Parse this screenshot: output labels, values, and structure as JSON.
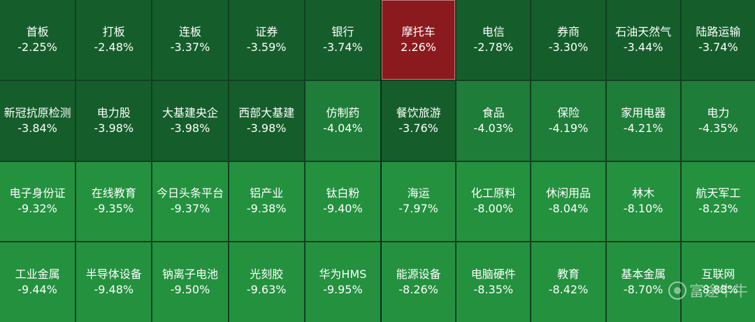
{
  "colors": {
    "up": "#8b1a1e",
    "down_dark": "#155e2b",
    "down_mid": "#1e7d38",
    "down_bright": "#24913f"
  },
  "left_panel": [
    {
      "name": "首板",
      "pct": "-2.25%",
      "tone": "down_dark"
    },
    {
      "name": "打板",
      "pct": "-2.48%",
      "tone": "down_dark"
    },
    {
      "name": "连板",
      "pct": "-3.37%",
      "tone": "down_dark"
    },
    {
      "name": "证券",
      "pct": "-3.59%",
      "tone": "down_dark"
    },
    {
      "name": "银行",
      "pct": "-3.74%",
      "tone": "down_dark"
    },
    {
      "name": "新冠抗原检测",
      "pct": "-3.84%",
      "tone": "down_dark"
    },
    {
      "name": "电力股",
      "pct": "-3.98%",
      "tone": "down_dark"
    },
    {
      "name": "大基建央企",
      "pct": "-3.98%",
      "tone": "down_dark"
    },
    {
      "name": "西部大基建",
      "pct": "-3.98%",
      "tone": "down_dark"
    },
    {
      "name": "仿制药",
      "pct": "-4.04%",
      "tone": "down_mid"
    },
    {
      "name": "电子身份证",
      "pct": "-9.32%",
      "tone": "down_bright"
    },
    {
      "name": "在线教育",
      "pct": "-9.35%",
      "tone": "down_bright"
    },
    {
      "name": "今日头条平台",
      "pct": "-9.37%",
      "tone": "down_bright"
    },
    {
      "name": "铝产业",
      "pct": "-9.38%",
      "tone": "down_bright"
    },
    {
      "name": "钛白粉",
      "pct": "-9.40%",
      "tone": "down_bright"
    },
    {
      "name": "工业金属",
      "pct": "-9.44%",
      "tone": "down_bright"
    },
    {
      "name": "半导体设备",
      "pct": "-9.48%",
      "tone": "down_bright"
    },
    {
      "name": "钠离子电池",
      "pct": "-9.50%",
      "tone": "down_bright"
    },
    {
      "name": "光刻胶",
      "pct": "-9.63%",
      "tone": "down_bright"
    },
    {
      "name": "华为HMS",
      "pct": "-9.95%",
      "tone": "down_bright"
    }
  ],
  "right_panel": [
    {
      "name": "摩托车",
      "pct": "2.26%",
      "tone": "up"
    },
    {
      "name": "电信",
      "pct": "-2.78%",
      "tone": "down_dark"
    },
    {
      "name": "券商",
      "pct": "-3.30%",
      "tone": "down_dark"
    },
    {
      "name": "石油天然气",
      "pct": "-3.44%",
      "tone": "down_dark"
    },
    {
      "name": "陆路运输",
      "pct": "-3.74%",
      "tone": "down_dark"
    },
    {
      "name": "餐饮旅游",
      "pct": "-3.76%",
      "tone": "down_dark"
    },
    {
      "name": "食品",
      "pct": "-4.03%",
      "tone": "down_mid"
    },
    {
      "name": "保险",
      "pct": "-4.19%",
      "tone": "down_mid"
    },
    {
      "name": "家用电器",
      "pct": "-4.21%",
      "tone": "down_mid"
    },
    {
      "name": "电力",
      "pct": "-4.35%",
      "tone": "down_mid"
    },
    {
      "name": "海运",
      "pct": "-7.97%",
      "tone": "down_bright"
    },
    {
      "name": "化工原料",
      "pct": "-8.00%",
      "tone": "down_bright"
    },
    {
      "name": "休闲用品",
      "pct": "-8.04%",
      "tone": "down_bright"
    },
    {
      "name": "林木",
      "pct": "-8.10%",
      "tone": "down_bright"
    },
    {
      "name": "航天军工",
      "pct": "-8.23%",
      "tone": "down_bright"
    },
    {
      "name": "能源设备",
      "pct": "-8.26%",
      "tone": "down_bright"
    },
    {
      "name": "电脑硬件",
      "pct": "-8.35%",
      "tone": "down_bright"
    },
    {
      "name": "教育",
      "pct": "-8.42%",
      "tone": "down_bright"
    },
    {
      "name": "基本金属",
      "pct": "-8.70%",
      "tone": "down_bright"
    },
    {
      "name": "互联网",
      "pct": "-8.88%",
      "tone": "down_bright"
    }
  ],
  "watermark": {
    "text": "富途牛牛",
    "icon": "futu-logo-icon"
  }
}
